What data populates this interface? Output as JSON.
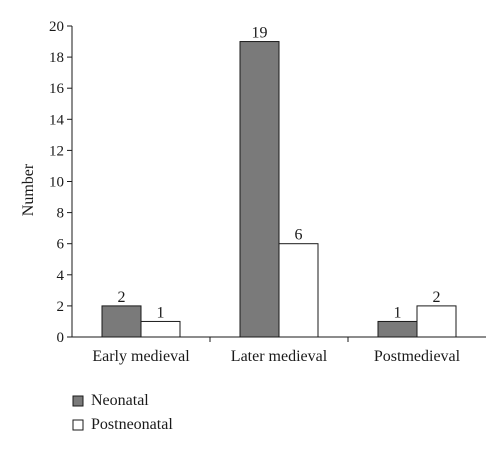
{
  "chart_data": {
    "type": "bar",
    "title": "",
    "xlabel": "",
    "ylabel": "Number",
    "ylim": [
      0,
      20
    ],
    "yticks": [
      0,
      2,
      4,
      6,
      8,
      10,
      12,
      14,
      16,
      18,
      20
    ],
    "grid": false,
    "legend_position": "bottom-left",
    "categories": [
      "Early medieval",
      "Later medieval",
      "Postmedieval"
    ],
    "series": [
      {
        "name": "Neonatal",
        "values": [
          2,
          19,
          1
        ],
        "color": "#7a7a7a"
      },
      {
        "name": "Postneonatal",
        "values": [
          1,
          6,
          2
        ],
        "color": "#ffffff"
      }
    ]
  }
}
